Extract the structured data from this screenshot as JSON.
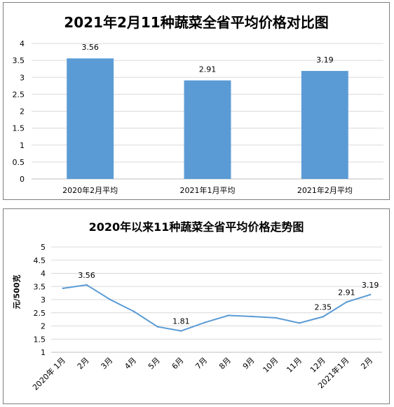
{
  "chart_data": [
    {
      "type": "bar",
      "title": "2021年2月11种蔬菜全省平均价格对比图",
      "categories": [
        "2020年2月平均",
        "2021年1月平均",
        "2021年2月平均"
      ],
      "values": [
        3.56,
        2.91,
        3.19
      ],
      "data_labels": [
        "3.56",
        "2.91",
        "3.19"
      ],
      "ylim": [
        0,
        4
      ],
      "yticks": [
        "0",
        "0.5",
        "1",
        "1.5",
        "2",
        "2.5",
        "3",
        "3.5",
        "4"
      ],
      "grid": true,
      "bar_color": "#5b9bd5"
    },
    {
      "type": "line",
      "title": "2020年以来11种蔬菜全省平均价格走势图",
      "ylabel": "元/500克",
      "categories": [
        "2020年 1月",
        "2月",
        "3月",
        "4月",
        "5月",
        "6月",
        "7月",
        "8月",
        "9月",
        "10月",
        "11月",
        "12月",
        "2021年1月",
        "2月"
      ],
      "values": [
        3.43,
        3.56,
        3.0,
        2.55,
        1.97,
        1.81,
        2.13,
        2.4,
        2.36,
        2.31,
        2.11,
        2.35,
        2.91,
        3.19
      ],
      "data_labels": [
        {
          "index": 1,
          "text": "3.56"
        },
        {
          "index": 5,
          "text": "1.81"
        },
        {
          "index": 11,
          "text": "2.35"
        },
        {
          "index": 12,
          "text": "2.91"
        },
        {
          "index": 13,
          "text": "3.19"
        }
      ],
      "ylim": [
        1,
        5
      ],
      "yticks": [
        "1",
        "1.5",
        "2",
        "2.5",
        "3",
        "3.5",
        "4",
        "4.5",
        "5"
      ],
      "grid": true,
      "line_color": "#5b9bd5"
    }
  ]
}
